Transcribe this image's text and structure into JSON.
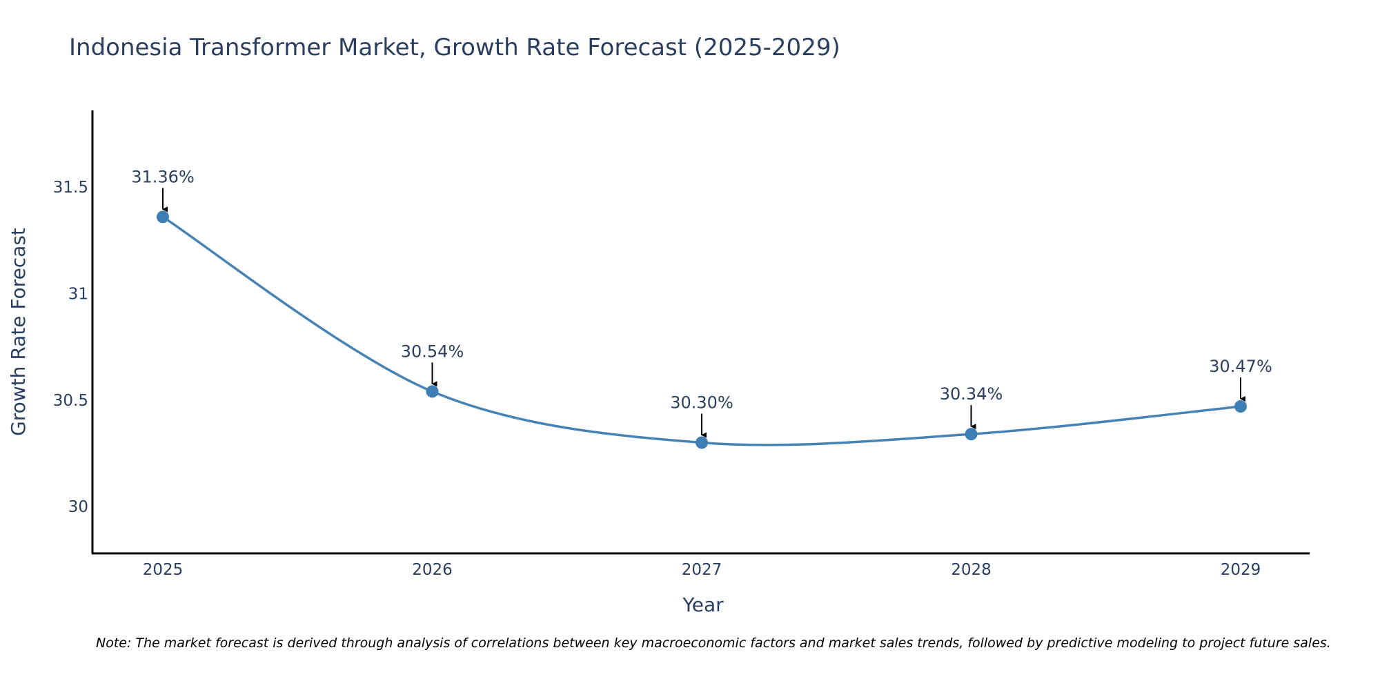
{
  "chart_data": {
    "type": "line",
    "title": "Indonesia Transformer Market, Growth Rate Forecast (2025-2029)",
    "xlabel": "Year",
    "ylabel": "Growth Rate Forecast",
    "categories": [
      "2025",
      "2026",
      "2027",
      "2028",
      "2029"
    ],
    "series": [
      {
        "name": "Growth Rate Forecast",
        "values": [
          31.36,
          30.54,
          30.3,
          30.34,
          30.47
        ]
      }
    ],
    "data_labels": [
      "31.36%",
      "30.54%",
      "30.30%",
      "30.34%",
      "30.47%"
    ],
    "yticks": [
      30,
      30.5,
      31,
      31.5
    ],
    "ytick_labels": [
      "30",
      "30.5",
      "31",
      "31.5"
    ],
    "ylim": [
      29.78,
      31.86
    ],
    "grid": false,
    "line_color": "#4682b4",
    "marker_color": "#3d7fb5",
    "note": "Note: The market forecast is derived through analysis of correlations between key macroeconomic factors and market sales trends, followed by predictive modeling to project future sales."
  }
}
